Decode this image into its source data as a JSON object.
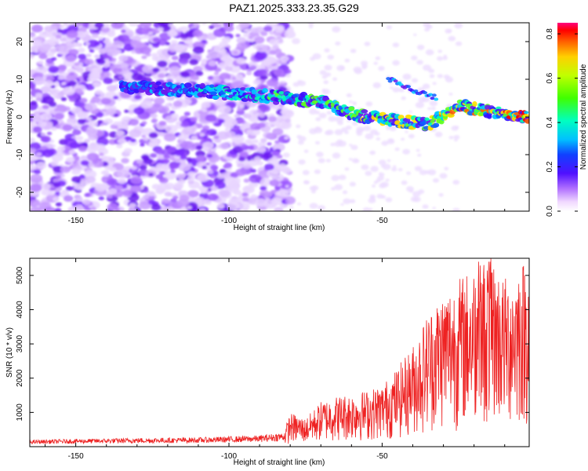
{
  "title": "PAZ1.2025.333.23.35.G29",
  "chart_data": [
    {
      "type": "heatmap",
      "title": "PAZ1.2025.333.23.35.G29",
      "xlabel": "Height of straight line (km)",
      "ylabel": "Frequency (Hz)",
      "xlim": [
        -165,
        -2
      ],
      "ylim": [
        -25,
        25
      ],
      "x_ticks": [
        -150,
        -100,
        -50
      ],
      "y_ticks": [
        -20,
        -10,
        0,
        10,
        20
      ],
      "colorbar": {
        "label": "Normalized spectral amplitude",
        "range": [
          0,
          0.85
        ],
        "ticks": [
          "0.0",
          "0.2",
          "0.4",
          "0.6",
          "0.8"
        ]
      },
      "ridge": {
        "description_points": [
          {
            "x": -135,
            "y": 8
          },
          {
            "x": -110,
            "y": 7
          },
          {
            "x": -95,
            "y": 6
          },
          {
            "x": -80,
            "y": 5
          },
          {
            "x": -70,
            "y": 4
          },
          {
            "x": -62,
            "y": 1.5
          },
          {
            "x": -55,
            "y": 0
          },
          {
            "x": -45,
            "y": -1
          },
          {
            "x": -35,
            "y": -2
          },
          {
            "x": -25,
            "y": 3
          },
          {
            "x": -15,
            "y": 1.5
          },
          {
            "x": -2,
            "y": 0
          }
        ],
        "secondary_branch": [
          {
            "x": -48,
            "y": 10
          },
          {
            "x": -40,
            "y": 7
          },
          {
            "x": -32,
            "y": 5
          }
        ]
      }
    },
    {
      "type": "line",
      "xlabel": "Height of straight line (km)",
      "ylabel": "SNR (10 * v/v)",
      "xlim": [
        -165,
        -2
      ],
      "ylim": [
        0,
        5500
      ],
      "x_ticks": [
        -150,
        -100,
        -50
      ],
      "y_ticks": [
        1000,
        2000,
        3000,
        4000,
        5000
      ],
      "series": [
        {
          "name": "SNR",
          "color": "#ee2222",
          "x": [
            -165,
            -150,
            -130,
            -110,
            -90,
            -82,
            -80,
            -75,
            -70,
            -65,
            -60,
            -55,
            -50,
            -45,
            -40,
            -35,
            -30,
            -25,
            -20,
            -15,
            -10,
            -5,
            -2
          ],
          "values": [
            130,
            150,
            170,
            180,
            220,
            280,
            600,
            500,
            800,
            900,
            950,
            1000,
            1100,
            1400,
            1800,
            2400,
            2800,
            3000,
            3200,
            3400,
            3000,
            3300,
            3400
          ]
        }
      ]
    }
  ]
}
